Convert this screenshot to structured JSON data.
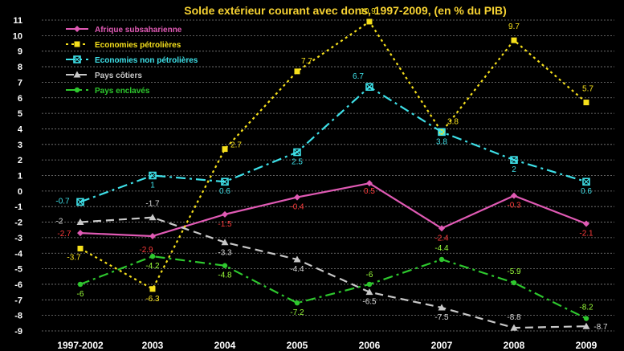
{
  "chart_data": {
    "type": "line",
    "title": "Solde extérieur courant avec dons, 1997-2009, (en % du PIB)",
    "categories": [
      "1997-2002",
      "2003",
      "2004",
      "2005",
      "2006",
      "2007",
      "2008",
      "2009"
    ],
    "ylim": [
      -9,
      11
    ],
    "yticks": [
      -9,
      -8,
      -7,
      -6,
      -5,
      -4,
      -3,
      -2,
      -1,
      0,
      1,
      2,
      3,
      4,
      5,
      6,
      7,
      8,
      9,
      10,
      11
    ],
    "grid": true,
    "legend_position": "top-left",
    "series": [
      {
        "name": "Afrique subsaharienne",
        "color": "#e05ab4",
        "label_color": "#ff3b3b",
        "line_style": "solid",
        "marker": "diamond",
        "values": [
          -2.7,
          -2.9,
          -1.5,
          -0.4,
          0.5,
          -2.4,
          -0.3,
          -2.1
        ],
        "labels": [
          "-2.7",
          "-2.9",
          "-1.5",
          "-0.4",
          "0.5",
          "-2.4",
          "-0.3",
          "-2.1"
        ]
      },
      {
        "name": "Economies pétrolières",
        "color": "#f6e01c",
        "label_color": "#f6e01c",
        "line_style": "dotted",
        "marker": "square",
        "values": [
          -3.7,
          -6.3,
          2.7,
          7.7,
          10.9,
          3.8,
          9.7,
          5.7
        ],
        "labels": [
          "-3.7",
          "-6.3",
          "2.7",
          "7.7",
          "10.9",
          "3.8",
          "9.7",
          "5.7"
        ]
      },
      {
        "name": "Economies non pétrolières",
        "color": "#3ee0e8",
        "label_color": "#3ee0e8",
        "line_style": "dashdot",
        "marker": "square-x",
        "values": [
          -0.7,
          1,
          0.6,
          2.5,
          6.7,
          3.8,
          2,
          0.6
        ],
        "labels": [
          "-0.7",
          "1",
          "0.6",
          "2.5",
          "6.7",
          "3.8",
          "2",
          "0.6"
        ]
      },
      {
        "name": "Pays côtiers",
        "color": "#c8c8c8",
        "label_color": "#d8d8d8",
        "line_style": "dashed",
        "marker": "triangle",
        "values": [
          -2,
          -1.7,
          -3.3,
          -4.4,
          -6.5,
          -7.5,
          -8.8,
          -8.7
        ],
        "labels": [
          "-2",
          "-1.7",
          "-3.3",
          "-4.4",
          "-6.5",
          "-7.5",
          "-8.8",
          "-8.7"
        ]
      },
      {
        "name": "Pays enclavés",
        "color": "#2ec82e",
        "label_color": "#9aff3a",
        "line_style": "dashdot",
        "marker": "circle",
        "values": [
          -6,
          -4.2,
          -4.8,
          -7.2,
          -6,
          -4.4,
          -5.9,
          -8.2
        ],
        "labels": [
          "-6",
          "-4.2",
          "-4.8",
          "-7.2",
          "-6",
          "-4.4",
          "-5.9",
          "-8.2"
        ]
      }
    ]
  }
}
